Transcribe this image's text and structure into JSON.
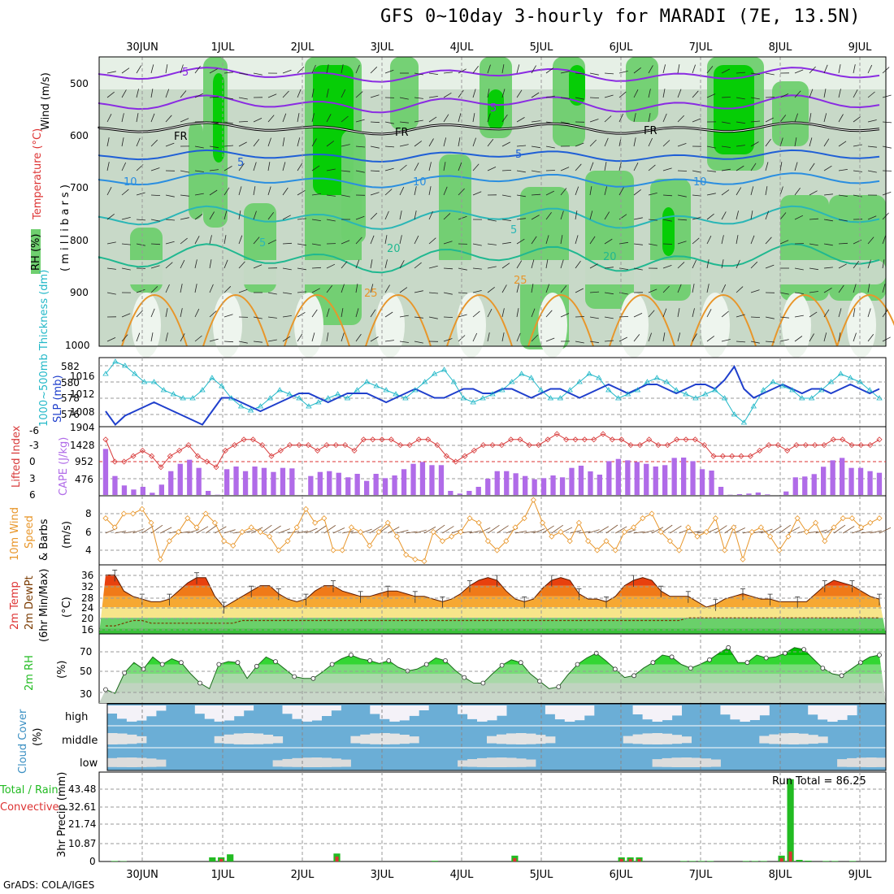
{
  "title": "GFS 0~10day 3-hourly for MARADI (7E, 13.5N)",
  "footer": "GrADS: COLA/IGES",
  "dates": [
    "30JUN",
    "1JUL",
    "2JUL",
    "3JUL",
    "4JUL",
    "5JUL",
    "6JUL",
    "7JUL",
    "8JUL",
    "9JUL"
  ],
  "colors": {
    "rh_dark": "#00cc00",
    "rh_mid": "#6fcf6f",
    "rh_light": "#c8d9c8",
    "cape": "#b06be8",
    "slp": "#1f3fcc",
    "thick": "#22b8c8",
    "lifted": "#d83a3a",
    "wind": "#e8962a",
    "cloud": "#6baed6",
    "precip_total": "#22bb22",
    "precip_conv": "#dd3333"
  },
  "panels": {
    "upper": {
      "label_wind": "Wind (m/s)",
      "label_temp": "Temperature (°C)",
      "label_rh": "RH (%)",
      "label_mb": "( m i l l i b a r s )",
      "yticks": [
        "500",
        "600",
        "700",
        "800",
        "900",
        "1000"
      ],
      "contour_labels": [
        "5",
        "FR",
        "FR",
        "FR",
        "5",
        "5",
        "5",
        "10",
        "10",
        "10",
        "5",
        "5",
        "20",
        "20",
        "25",
        "25"
      ]
    },
    "thickness": {
      "label_thick": "1000~500mb Thickness (dm)",
      "label_slp": "SLP (mb)",
      "ticks_left": [
        "582",
        "580",
        "578",
        "576"
      ],
      "ticks_right": [
        "1016",
        "1012",
        "1008",
        "1904"
      ]
    },
    "cape": {
      "label_li": "Lifted Index",
      "label_cape": "CAPE (J/kg)",
      "ticks_left": [
        "-3",
        "0",
        "3",
        "6",
        "-6"
      ],
      "ticks_right": [
        "1428",
        "952",
        "476"
      ]
    },
    "wind10": {
      "label1": "10m Wind",
      "label2": "Speed",
      "label3": "& Barbs",
      "label4": "(m/s)",
      "yticks": [
        "8",
        "6",
        "4"
      ]
    },
    "temp2m": {
      "label1": "2m Temp",
      "label2": "2m DewPt",
      "label3": "(6hr Min/Max)",
      "label4": "(°C)",
      "yticks": [
        "36",
        "32",
        "28",
        "24",
        "20",
        "16"
      ]
    },
    "rh2m": {
      "label1": "2m RH",
      "label2": "(%)",
      "yticks": [
        "70",
        "50",
        "30"
      ]
    },
    "cloud": {
      "label1": "Cloud Cover",
      "label2": "(%)",
      "levels": [
        "high",
        "middle",
        "low"
      ]
    },
    "precip": {
      "label1": "Total / Rain",
      "label2": "Convective",
      "label3": "3hr Precip (mm)",
      "yticks": [
        "43.48",
        "32.61",
        "21.74",
        "10.87",
        "0"
      ],
      "run_total": "Run Total = 86.25"
    }
  },
  "chart_data": [
    {
      "type": "line",
      "name_ref": "thickness_slp",
      "x": "3-hourly steps, 0 to 80",
      "series": [
        {
          "name": "1000~500mb Thickness (dm)",
          "values": [
            581,
            582.5,
            582,
            581,
            580,
            580,
            579,
            578.5,
            578,
            578,
            579,
            580.5,
            579.5,
            578,
            577,
            576.5,
            577,
            578,
            579,
            578.5,
            578,
            577,
            577.5,
            578,
            578.5,
            578,
            579,
            580,
            579.5,
            579,
            578.5,
            578,
            579,
            580,
            581,
            581.5,
            580,
            578,
            577.5,
            578,
            578.5,
            579,
            580,
            581,
            580.5,
            579,
            578,
            578,
            579,
            580,
            581,
            580.5,
            579,
            578,
            578.5,
            579,
            580,
            580.5,
            580,
            579,
            578.5,
            578,
            578.5,
            579,
            578,
            576,
            575,
            577,
            579,
            580,
            579.5,
            579,
            578,
            578,
            579,
            580,
            581,
            580.5,
            580,
            579,
            578
          ]
        },
        {
          "name": "SLP (mb)",
          "values": [
            1008,
            1005,
            1007,
            1008,
            1009,
            1010,
            1009,
            1008,
            1007,
            1006,
            1005,
            1008,
            1011,
            1011,
            1010,
            1009,
            1008,
            1009,
            1010,
            1011,
            1012,
            1012,
            1011,
            1010,
            1011,
            1012,
            1012,
            1012,
            1011,
            1010,
            1011,
            1012,
            1013,
            1012,
            1011,
            1011,
            1012,
            1013,
            1013,
            1012,
            1012,
            1013,
            1013,
            1012,
            1011,
            1012,
            1013,
            1013,
            1012,
            1011,
            1012,
            1013,
            1014,
            1013,
            1012,
            1013,
            1014,
            1014,
            1013,
            1012,
            1013,
            1014,
            1014,
            1013,
            1015,
            1018,
            1013,
            1011,
            1012,
            1013,
            1014,
            1013,
            1012,
            1013,
            1013,
            1012,
            1013,
            1014,
            1013,
            1012,
            1013
          ]
        }
      ]
    },
    {
      "type": "bar",
      "name_ref": "cape_lifted",
      "series": [
        {
          "name": "CAPE (J/kg)",
          "values": [
            1700,
            700,
            350,
            200,
            300,
            80,
            380,
            880,
            1150,
            1300,
            1000,
            150,
            10,
            950,
            1050,
            880,
            1050,
            1000,
            850,
            1000,
            980,
            0,
            700,
            850,
            880,
            820,
            650,
            780,
            520,
            780,
            620,
            720,
            950,
            1150,
            1220,
            1100,
            1100,
            150,
            50,
            150,
            300,
            600,
            880,
            880,
            800,
            700,
            580,
            620,
            720,
            650,
            1000,
            1080,
            870,
            750,
            1250,
            1330,
            1280,
            1220,
            1150,
            1050,
            1100,
            1370,
            1380,
            1250,
            950,
            900,
            300,
            10,
            30,
            50,
            90,
            20,
            0,
            130,
            650,
            680,
            770,
            1040,
            1280,
            1370,
            1000,
            1000,
            880,
            820
          ]
        },
        {
          "name": "Lifted Index",
          "values": [
            -4,
            0,
            0,
            -1,
            -2,
            -1,
            1,
            -1,
            -2,
            -3,
            -1,
            0,
            1,
            -2,
            -3,
            -4,
            -4,
            -3,
            -1,
            -2,
            -3,
            -3,
            -3,
            -2,
            -3,
            -3,
            -3,
            -2,
            -4,
            -4,
            -4,
            -4,
            -3,
            -3,
            -4,
            -4,
            -3,
            -1,
            0,
            -1,
            -2,
            -3,
            -3,
            -3,
            -4,
            -4,
            -3,
            -3,
            -4,
            -5,
            -4,
            -4,
            -4,
            -4,
            -5,
            -4,
            -4,
            -3,
            -3,
            -4,
            -3,
            -3,
            -4,
            -4,
            -4,
            -3,
            -1,
            -1,
            -1,
            -1,
            -1,
            -2,
            -3,
            -3,
            -2,
            -3,
            -3,
            -3,
            -3,
            -4,
            -4,
            -3,
            -3,
            -3,
            -4
          ]
        }
      ]
    },
    {
      "type": "line",
      "name_ref": "wind10m",
      "series": [
        {
          "name": "10m Wind Speed (m/s)",
          "values": [
            7.5,
            6.5,
            8,
            8,
            8.5,
            7,
            3,
            5,
            6,
            7.5,
            6.5,
            8,
            7,
            5,
            4.5,
            6,
            6.5,
            6,
            5.5,
            4,
            5,
            6.5,
            8.5,
            7,
            7.5,
            4,
            4,
            6.5,
            6,
            4.5,
            6,
            7,
            5.5,
            3.5,
            3,
            2.8,
            6,
            5,
            5.5,
            6,
            7.5,
            7,
            5,
            4,
            5,
            6.5,
            7.5,
            9.5,
            7,
            5.5,
            6,
            5,
            7,
            5,
            4,
            5,
            4,
            6,
            6.5,
            7.5,
            8,
            6,
            5,
            4,
            6.5,
            5.5,
            6,
            7.5,
            4,
            6.5,
            3,
            6,
            6.5,
            5.5,
            4,
            5.5,
            7.5,
            6,
            7,
            5,
            6.5,
            7.5,
            7.5,
            6.5,
            7,
            7.5
          ]
        }
      ]
    },
    {
      "type": "area",
      "name_ref": "temp2m",
      "series": [
        {
          "name": "2m Temp (°C)",
          "values": [
            36,
            36,
            30,
            28,
            27,
            26,
            26,
            27,
            30,
            33,
            35,
            35,
            28,
            24,
            26,
            28,
            30,
            32,
            32,
            29,
            27,
            26,
            27,
            30,
            32,
            32,
            30,
            29,
            28,
            28,
            29,
            30,
            30,
            29,
            28,
            28,
            27,
            26,
            27,
            29,
            32,
            34,
            35,
            34,
            30,
            27,
            26,
            27,
            31,
            34,
            35,
            34,
            29,
            27,
            27,
            26,
            28,
            32,
            34,
            35,
            34,
            30,
            28,
            28,
            28,
            26,
            24,
            25,
            27,
            28,
            29,
            28,
            27,
            27,
            26,
            26,
            26,
            26,
            29,
            32,
            34,
            33,
            32,
            30,
            28,
            27
          ]
        },
        {
          "name": "2m DewPt (°C)",
          "values": [
            17,
            17,
            18,
            19,
            19,
            18,
            18,
            18,
            18,
            18,
            18,
            18,
            18,
            18,
            18,
            19,
            19,
            19,
            19,
            19,
            19,
            19,
            19,
            19,
            19,
            19,
            19,
            19,
            19,
            19,
            19,
            19,
            19,
            19,
            19,
            19,
            19,
            19,
            19,
            19,
            19,
            19,
            19,
            19,
            19,
            19,
            19,
            19,
            19,
            19,
            19,
            19,
            19,
            19,
            19,
            19,
            19,
            19,
            19,
            19,
            19,
            19,
            19,
            19,
            20,
            20,
            20,
            20,
            20,
            20,
            20,
            20,
            20,
            20,
            20,
            20,
            20,
            20,
            20,
            20,
            20,
            20,
            20,
            20,
            20,
            20
          ]
        }
      ]
    },
    {
      "type": "area",
      "name_ref": "rh2m",
      "series": [
        {
          "name": "2m RH (%)",
          "values": [
            33,
            29,
            51,
            62,
            55,
            68,
            60,
            66,
            62,
            50,
            40,
            34,
            60,
            63,
            62,
            45,
            58,
            68,
            63,
            55,
            47,
            45,
            45,
            52,
            60,
            66,
            70,
            66,
            64,
            61,
            64,
            57,
            53,
            55,
            60,
            67,
            64,
            54,
            46,
            40,
            40,
            50,
            59,
            65,
            62,
            50,
            42,
            34,
            36,
            49,
            60,
            67,
            72,
            64,
            55,
            46,
            48,
            56,
            62,
            70,
            68,
            60,
            56,
            60,
            65,
            72,
            78,
            62,
            62,
            70,
            67,
            68,
            72,
            78,
            76,
            66,
            56,
            50,
            48,
            55,
            62,
            68,
            70
          ]
        }
      ]
    },
    {
      "type": "bar",
      "name_ref": "precip",
      "series": [
        {
          "name": "Total 3hr Precip (mm)",
          "values": [
            0,
            0.3,
            0.2,
            0,
            0,
            0,
            0,
            0,
            0,
            0,
            0,
            0,
            2.5,
            2.5,
            4.3,
            0,
            0,
            0,
            0,
            0,
            0,
            0,
            0,
            0,
            0,
            0,
            4.8,
            0,
            0,
            0,
            0,
            0,
            0,
            0,
            0,
            0,
            0,
            0.4,
            0,
            0,
            0,
            0,
            0,
            0,
            0,
            0,
            3.5,
            0,
            0,
            0,
            0,
            0,
            0,
            0,
            0,
            0,
            0,
            0,
            2.5,
            2.5,
            2.5,
            0,
            0,
            0,
            0,
            0.3,
            0.3,
            0.3,
            0.3,
            0,
            0,
            0,
            0.3,
            0.3,
            0.3,
            0,
            3.5,
            49.5,
            1,
            0.5,
            0,
            0.3,
            0.3,
            0,
            0.3,
            0,
            0,
            0
          ]
        },
        {
          "name": "Convective (mm)",
          "values": [
            0,
            0,
            0,
            0,
            0,
            0,
            0,
            0,
            0,
            0,
            0,
            0,
            0,
            1.5,
            0,
            0,
            0,
            0,
            0,
            0,
            0,
            0,
            0,
            0,
            0,
            0,
            3,
            0,
            0,
            0,
            0,
            0,
            0,
            0,
            0,
            0,
            0,
            0,
            0,
            0,
            0,
            0,
            0,
            0,
            0,
            0,
            2,
            0,
            0,
            0,
            0,
            0,
            0,
            0,
            0,
            0,
            0,
            0,
            1.5,
            1.5,
            1.5,
            0,
            0,
            0,
            0,
            0,
            0,
            0,
            0,
            0,
            0,
            0,
            0,
            0,
            0,
            0,
            2,
            6,
            0,
            0,
            0,
            0,
            0,
            0,
            0,
            0,
            0,
            0
          ]
        }
      ]
    }
  ]
}
